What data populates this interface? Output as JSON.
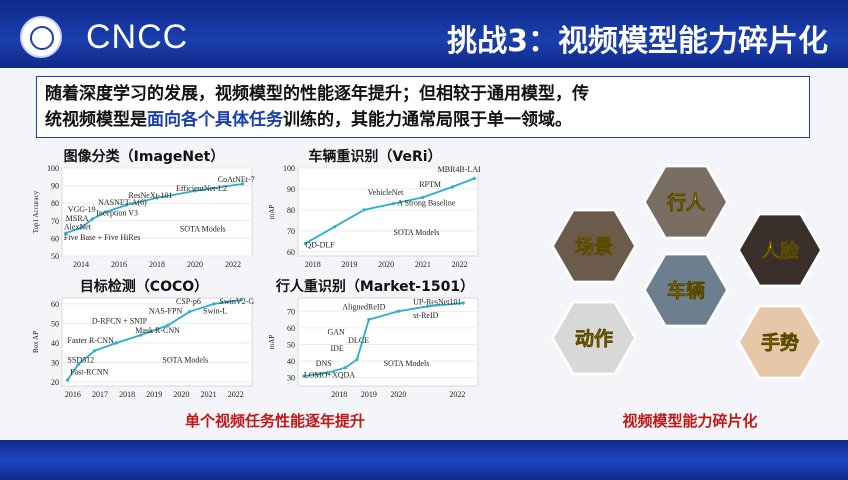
{
  "header": {
    "logo_text": "CNCC",
    "title": "挑战3：视频模型能力碎片化"
  },
  "summary": {
    "line1": "随着深度学习的发展，视频模型的性能逐年提升；但相较于通用模型，传",
    "line2_prefix": "统视频模型是",
    "line2_highlight": "面向各个具体任务",
    "line2_suffix": "训练的，其能力通常局限于单一领域。"
  },
  "captions": {
    "left": "单个视频任务性能逐年提升",
    "right": "视频模型能力碎片化"
  },
  "hexagons": [
    {
      "label": "行人",
      "color": "#7a6e62"
    },
    {
      "label": "场景",
      "color": "#6b5b4b"
    },
    {
      "label": "人脸",
      "color": "#3a2f2a"
    },
    {
      "label": "车辆",
      "color": "#6d7f8e"
    },
    {
      "label": "动作",
      "color": "#d8d8d8"
    },
    {
      "label": "手势",
      "color": "#e6c8a8"
    }
  ],
  "chart_data": [
    {
      "type": "line",
      "title": "图像分类（ImageNet）",
      "ylabel": "Top1 Accuracy",
      "x_ticks": [
        "2014",
        "2016",
        "2018",
        "2020",
        "2022"
      ],
      "y_ticks": [
        "50",
        "60",
        "70",
        "80",
        "90",
        "100"
      ],
      "xlim": [
        2013,
        2023
      ],
      "ylim": [
        50,
        100
      ],
      "series": [
        {
          "x": [
            2013.2,
            2014,
            2014.6,
            2015.3,
            2016.4,
            2018,
            2020,
            2022.5
          ],
          "y": [
            63,
            66,
            71,
            75,
            79,
            83,
            87,
            91
          ]
        }
      ],
      "annotations": [
        {
          "text": "CoAtNEt-7",
          "x": 2021.2,
          "y": 92
        },
        {
          "text": "EfficientNet-L2",
          "x": 2019,
          "y": 87
        },
        {
          "text": "ResNeXt-101",
          "x": 2016.5,
          "y": 83
        },
        {
          "text": "NASNET-A(6)",
          "x": 2014.9,
          "y": 79
        },
        {
          "text": "VGG-19",
          "x": 2013.3,
          "y": 75
        },
        {
          "text": "Inception V3",
          "x": 2014.8,
          "y": 73
        },
        {
          "text": "MSRA",
          "x": 2013.2,
          "y": 70
        },
        {
          "text": "AlexNet",
          "x": 2013.1,
          "y": 65
        },
        {
          "text": "Five Base + Five HiRes",
          "x": 2013.1,
          "y": 59
        },
        {
          "text": "SOTA Models",
          "x": 2019.2,
          "y": 64
        }
      ]
    },
    {
      "type": "line",
      "title": "车辆重识别（VeRi）",
      "ylabel": "mAP",
      "x_ticks": [
        "2018",
        "2019",
        "2020",
        "2021",
        "2022"
      ],
      "y_ticks": [
        "60",
        "70",
        "80",
        "90",
        "100"
      ],
      "xlim": [
        2017.6,
        2022.5
      ],
      "ylim": [
        58,
        100
      ],
      "series": [
        {
          "x": [
            2017.8,
            2018.6,
            2019.4,
            2020.2,
            2021,
            2021.8,
            2022.4
          ],
          "y": [
            64,
            72,
            80,
            83,
            86,
            91,
            95
          ]
        }
      ],
      "annotations": [
        {
          "text": "MBR4B-LAI",
          "x": 2021.4,
          "y": 98
        },
        {
          "text": "RPTM",
          "x": 2020.9,
          "y": 91
        },
        {
          "text": "VehicleNet",
          "x": 2019.5,
          "y": 87
        },
        {
          "text": "A Strong Baseline",
          "x": 2020.3,
          "y": 82
        },
        {
          "text": "SOTA Models",
          "x": 2020.2,
          "y": 68
        },
        {
          "text": "QD-DLF",
          "x": 2017.8,
          "y": 62
        }
      ]
    },
    {
      "type": "line",
      "title": "目标检测（COCO）",
      "ylabel": "Box AP",
      "x_ticks": [
        "2016",
        "2017",
        "2018",
        "2019",
        "2020",
        "2021",
        "2022"
      ],
      "y_ticks": [
        "20",
        "30",
        "40",
        "50",
        "60"
      ],
      "xlim": [
        2015.6,
        2022.6
      ],
      "ylim": [
        18,
        63
      ],
      "series": [
        {
          "x": [
            2015.8,
            2016.2,
            2016.8,
            2017.6,
            2018.5,
            2019.5,
            2020.3,
            2021.2,
            2022.2
          ],
          "y": [
            21,
            29,
            36,
            40,
            44,
            49,
            56,
            60,
            62
          ]
        }
      ],
      "annotations": [
        {
          "text": "CSP-p6",
          "x": 2019.8,
          "y": 60
        },
        {
          "text": "SwinV2-G",
          "x": 2021.4,
          "y": 60
        },
        {
          "text": "Swin-L",
          "x": 2020.8,
          "y": 55
        },
        {
          "text": "NAS-FPN",
          "x": 2018.8,
          "y": 55
        },
        {
          "text": "D-RFCN + SNIP",
          "x": 2016.7,
          "y": 50
        },
        {
          "text": "Mask R-CNN",
          "x": 2018.3,
          "y": 45
        },
        {
          "text": "Faster R-CNN",
          "x": 2015.8,
          "y": 40
        },
        {
          "text": "SSD512",
          "x": 2015.8,
          "y": 30
        },
        {
          "text": "SOTA Models",
          "x": 2019.3,
          "y": 30
        },
        {
          "text": "Fast-RCNN",
          "x": 2015.9,
          "y": 24
        }
      ]
    },
    {
      "type": "line",
      "title": "行人重识别（Market-1501）",
      "ylabel": "mAP",
      "x_ticks": [
        "2018",
        "2019",
        "2020",
        "2022"
      ],
      "y_ticks": [
        "30",
        "40",
        "50",
        "60",
        "70"
      ],
      "xlim": [
        2016.6,
        2022.7
      ],
      "ylim": [
        25,
        78
      ],
      "series": [
        {
          "x": [
            2016.8,
            2017.6,
            2018.2,
            2018.6,
            2019.0,
            2020.0,
            2021,
            2022.2
          ],
          "y": [
            31,
            33,
            36,
            41,
            65,
            70,
            73,
            75
          ]
        }
      ],
      "annotations": [
        {
          "text": "UP-ResNet101",
          "x": 2020.5,
          "y": 74
        },
        {
          "text": "AlignedReID",
          "x": 2018.1,
          "y": 71
        },
        {
          "text": "st-ReID",
          "x": 2020.5,
          "y": 66
        },
        {
          "text": "GAN",
          "x": 2017.6,
          "y": 56
        },
        {
          "text": "DLCE",
          "x": 2018.3,
          "y": 51
        },
        {
          "text": "IDE",
          "x": 2017.7,
          "y": 46
        },
        {
          "text": "DNS",
          "x": 2017.2,
          "y": 37
        },
        {
          "text": "SOTA Models",
          "x": 2019.5,
          "y": 37
        },
        {
          "text": "LOMO+XQDA",
          "x": 2016.8,
          "y": 30
        }
      ]
    }
  ]
}
